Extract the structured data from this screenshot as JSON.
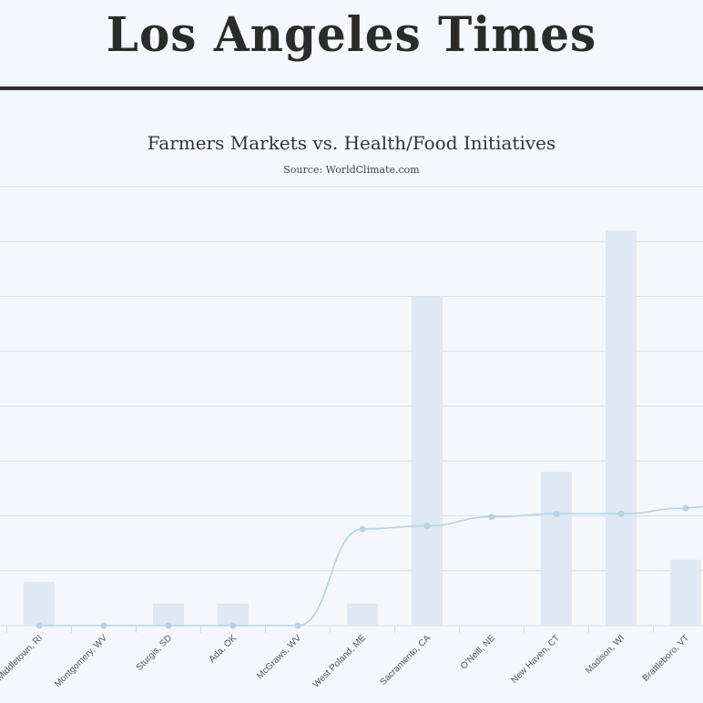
{
  "masthead": {
    "logo_text": "Los Angeles Times"
  },
  "chart_data": {
    "type": "bar",
    "title": "Farmers Markets vs. Health/Food Initiatives",
    "subtitle": "Source: WorldClimate.com",
    "categories": [
      "Middletown, RI",
      "Montgomery, WV",
      "Sturgis, SD",
      "Ada, OK",
      "McGraws, WV",
      "West Poland, ME",
      "Sacramento, CA",
      "O'Neill, NE",
      "New Haven, CT",
      "Madison, WI",
      "Brattleboro, VT"
    ],
    "series": [
      {
        "type": "bar",
        "values": [
          4,
          0,
          2,
          2,
          0,
          2,
          30,
          0,
          14,
          36,
          6
        ]
      },
      {
        "type": "spline",
        "values": [
          0,
          0,
          0,
          0,
          0,
          8.8,
          9.1,
          9.9,
          10.2,
          10.2,
          10.7
        ]
      }
    ],
    "ylim": [
      0,
      40
    ],
    "grid": true,
    "colors": {
      "bar": "#dfe8f3",
      "line": "#b7d2ea",
      "grid": "#d6dde5"
    }
  }
}
